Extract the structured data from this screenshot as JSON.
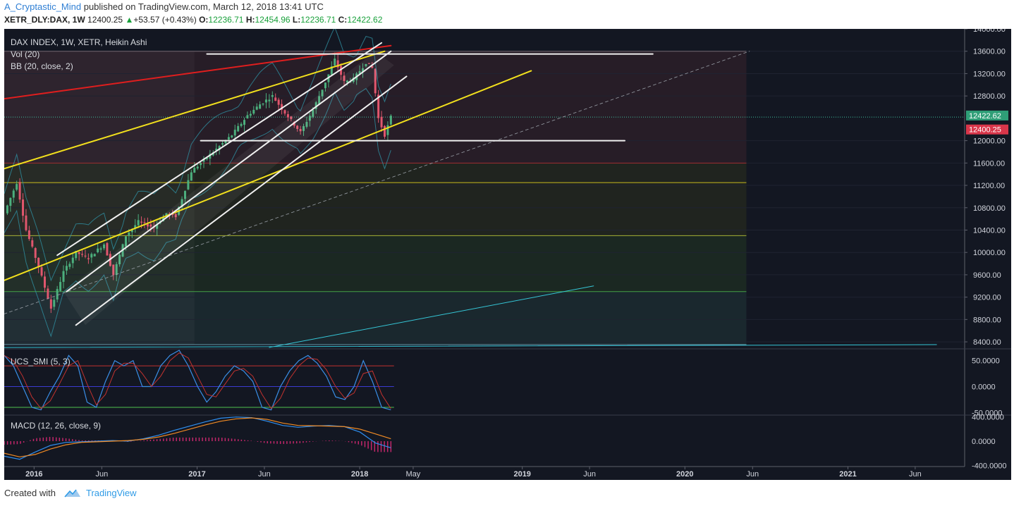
{
  "header": {
    "author": "A_Cryptastic_Mind",
    "published_text": " published on TradingView.com, March 12, 2018 13:41 UTC",
    "symbol": "XETR_DLY:DAX, 1W",
    "price": "12400.25",
    "change": "+53.57 (+0.43%)",
    "open_label": "O:",
    "open": "12236.71",
    "high_label": "H:",
    "high": "12454.96",
    "low_label": "L:",
    "low": "12236.71",
    "close_label": "C:",
    "close": "12422.62"
  },
  "legend": {
    "main": "DAX INDEX, 1W, XETR, Heikin Ashi",
    "vol": "Vol (20)",
    "bb": "BB (20, close, 2)",
    "smi": "UCS_SMI (5, 3)",
    "macd": "MACD (12, 26, close, 9)"
  },
  "footer": {
    "created_with": "Created with",
    "brand": "TradingView"
  },
  "colors": {
    "background": "#131722",
    "up": "#4caf7d",
    "down": "#e0566d",
    "red_line": "#e01e1e",
    "yellow_line": "#f2e01d",
    "white_line": "#f0f0f0",
    "cyan_line": "#35c6d6",
    "smi_line": "#3a8ee6",
    "macd_line": "#2f8ff0",
    "signal_line": "#f08a24"
  },
  "chart_data": [
    {
      "type": "candlestick",
      "title": "DAX INDEX, 1W, XETR, Heikin Ashi",
      "price_axis_ticks": [
        14000,
        13600,
        13200,
        12800,
        12000,
        11600,
        11200,
        10800,
        10400,
        10000,
        9600,
        9200,
        8800,
        8400
      ],
      "ylim": [
        8300,
        14000
      ],
      "x_axis_ticks": [
        "2016",
        "Jun",
        "2017",
        "Jun",
        "2018",
        "May",
        "2019",
        "Jun",
        "2020",
        "Jun",
        "2021",
        "Jun"
      ],
      "x_tick_dates": [
        "2016-01-01",
        "2016-06-01",
        "2017-01-01",
        "2017-06-01",
        "2018-01-01",
        "2018-05-01",
        "2019-01-01",
        "2019-06-01",
        "2020-01-01",
        "2020-06-01",
        "2021-01-01",
        "2021-06-01"
      ],
      "xlim": [
        "2015-10-26",
        "2021-09-20"
      ],
      "last_close_label": "12422.62",
      "last_price_label": "12400.25",
      "weekly_close_path": [
        [
          "2015-10-26",
          10700
        ],
        [
          "2015-11-23",
          11250
        ],
        [
          "2015-12-14",
          10400
        ],
        [
          "2016-01-11",
          9750
        ],
        [
          "2016-02-08",
          9000
        ],
        [
          "2016-03-07",
          9650
        ],
        [
          "2016-04-04",
          10000
        ],
        [
          "2016-05-02",
          9900
        ],
        [
          "2016-06-06",
          10150
        ],
        [
          "2016-06-27",
          9600
        ],
        [
          "2016-07-25",
          10300
        ],
        [
          "2016-08-22",
          10550
        ],
        [
          "2016-09-26",
          10450
        ],
        [
          "2016-10-24",
          10700
        ],
        [
          "2016-11-14",
          10650
        ],
        [
          "2016-12-19",
          11450
        ],
        [
          "2017-01-23",
          11700
        ],
        [
          "2017-02-20",
          11900
        ],
        [
          "2017-03-20",
          12100
        ],
        [
          "2017-04-24",
          12450
        ],
        [
          "2017-05-22",
          12650
        ],
        [
          "2017-06-19",
          12800
        ],
        [
          "2017-07-17",
          12500
        ],
        [
          "2017-08-21",
          12150
        ],
        [
          "2017-09-18",
          12550
        ],
        [
          "2017-10-16",
          13050
        ],
        [
          "2017-11-06",
          13450
        ],
        [
          "2017-11-27",
          13050
        ],
        [
          "2017-12-18",
          13100
        ],
        [
          "2018-01-15",
          13400
        ],
        [
          "2018-01-29",
          13300
        ],
        [
          "2018-02-12",
          12400
        ],
        [
          "2018-02-26",
          12100
        ],
        [
          "2018-03-12",
          12422.62
        ]
      ],
      "horizontal_levels": [
        13600,
        12422.62,
        11600,
        11250,
        10300,
        9300,
        8350
      ],
      "indicators": [
        "Vol (20)",
        "BB (20, close, 2)"
      ]
    },
    {
      "type": "line",
      "title": "UCS_SMI (5, 3)",
      "y_axis_ticks": [
        50,
        0,
        -50
      ],
      "y_tick_labels": [
        "50.0000",
        "0.0000",
        "-50.0000"
      ],
      "ylim": [
        -55,
        70
      ],
      "overbought": 40,
      "oversold": -40,
      "series": [
        {
          "values": [
            60,
            40,
            0,
            -40,
            -45,
            -10,
            20,
            60,
            40,
            -30,
            -40,
            10,
            50,
            40,
            50,
            0,
            0,
            40,
            60,
            70,
            40,
            0,
            -30,
            -10,
            20,
            40,
            30,
            10,
            -40,
            -45,
            0,
            30,
            50,
            60,
            45,
            20,
            -20,
            -25,
            0,
            50,
            10,
            -40,
            -45
          ]
        }
      ]
    },
    {
      "type": "line",
      "title": "MACD (12, 26, close, 9)",
      "y_axis_ticks": [
        400,
        0,
        -400
      ],
      "y_tick_labels": [
        "400.0000",
        "0.0000",
        "-400.0000"
      ],
      "ylim": [
        -420,
        420
      ],
      "series": [
        {
          "values": [
            -250,
            -300,
            -180,
            -70,
            -20,
            -10,
            0,
            10,
            0,
            40,
            100,
            180,
            250,
            320,
            380,
            400,
            390,
            330,
            260,
            230,
            250,
            260,
            240,
            150,
            -30,
            -110
          ]
        },
        {
          "values": [
            -200,
            -260,
            -220,
            -130,
            -60,
            -20,
            -10,
            0,
            10,
            30,
            70,
            130,
            200,
            270,
            330,
            370,
            385,
            360,
            300,
            260,
            255,
            250,
            240,
            200,
            120,
            40
          ]
        }
      ]
    }
  ]
}
